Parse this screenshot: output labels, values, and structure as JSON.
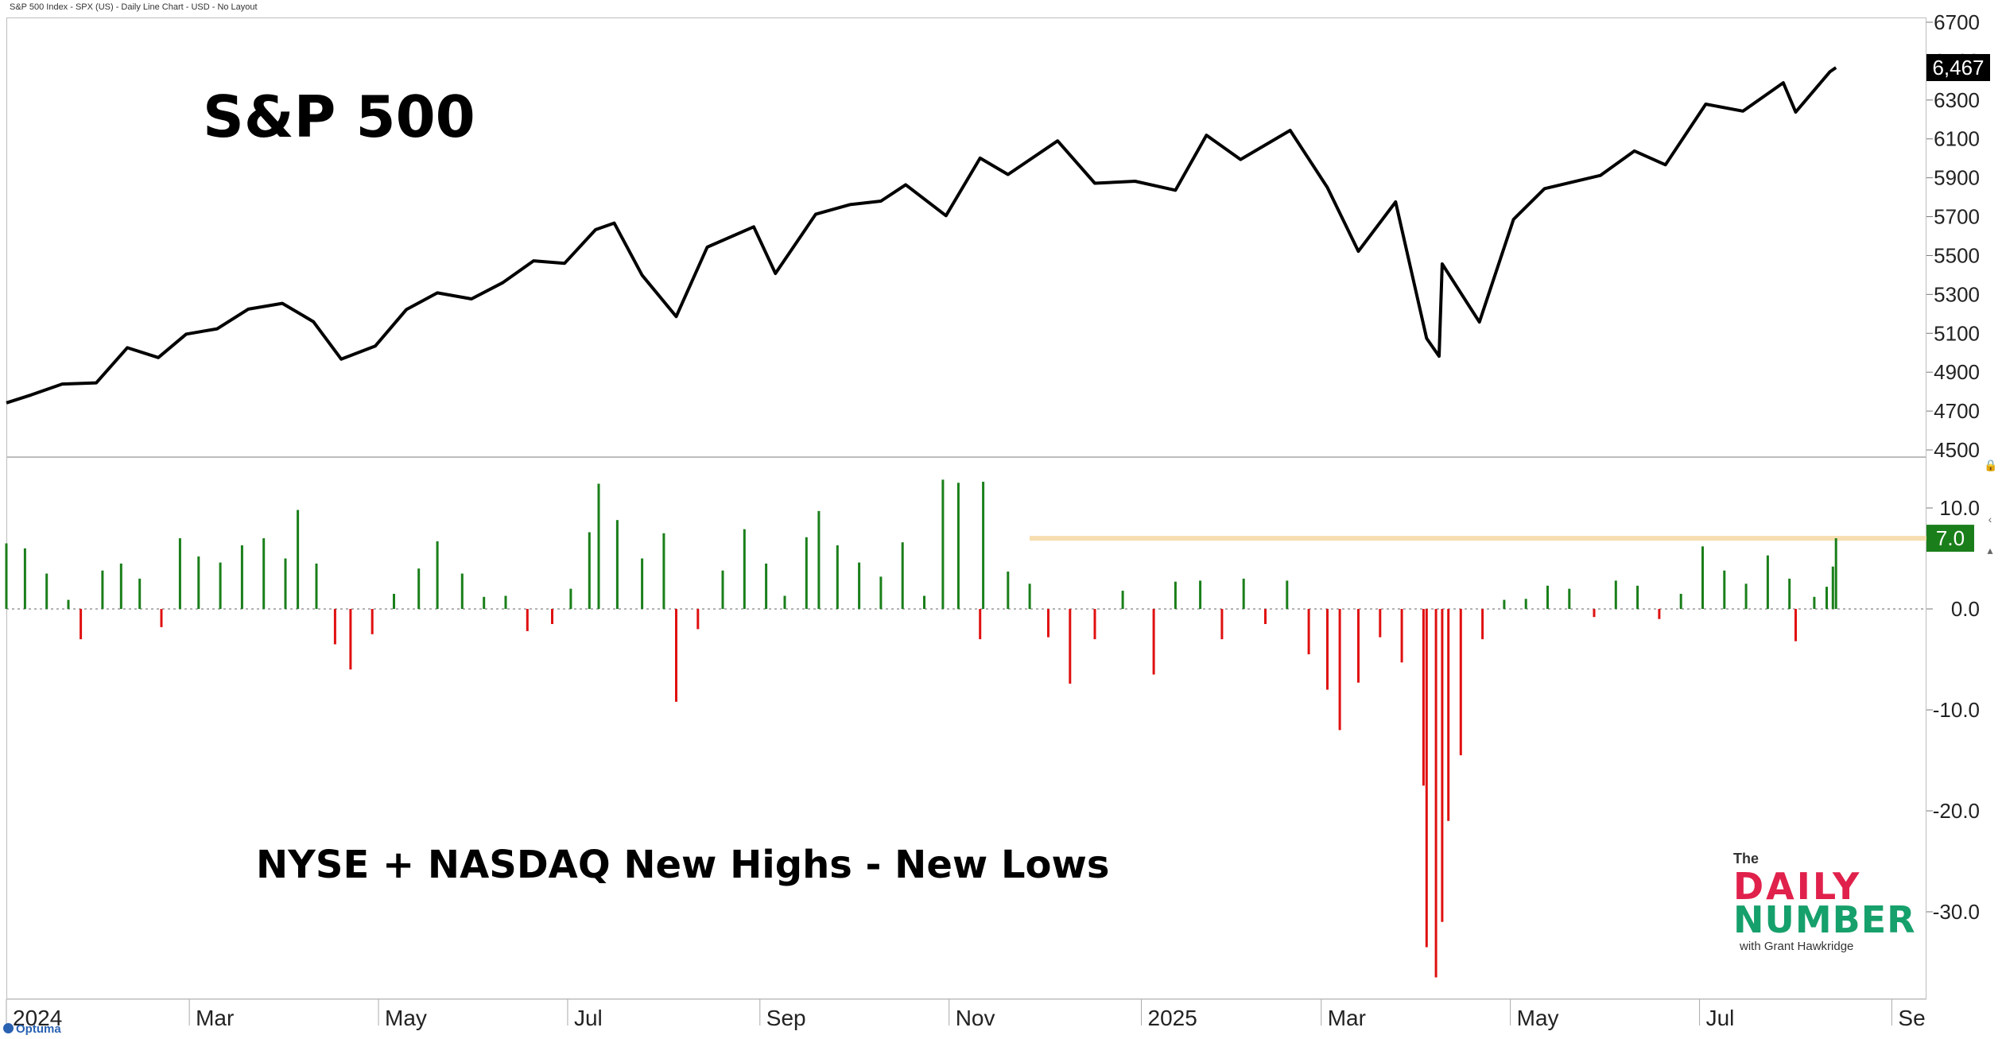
{
  "header": {
    "text": "S&P 500 Index - SPX (US) - Daily Line Chart - USD - No Layout"
  },
  "chart_data": [
    {
      "type": "line",
      "title": "S&P 500",
      "series": [],
      "x_range": [
        "2024-01-02",
        "2025-09-05"
      ],
      "ylim": [
        4500,
        6700
      ],
      "y_ticks": [
        "6700",
        "6500",
        "6300",
        "6100",
        "5900",
        "5700",
        "5500",
        "5300",
        "5100",
        "4900",
        "4700",
        "4500"
      ],
      "last_value": 6467,
      "last_value_label": "6,467",
      "values": [
        {
          "x": "2024-01-02",
          "y": 4742
        },
        {
          "x": "2024-01-10",
          "y": 4783
        },
        {
          "x": "2024-01-20",
          "y": 4839
        },
        {
          "x": "2024-01-31",
          "y": 4845
        },
        {
          "x": "2024-02-10",
          "y": 5026
        },
        {
          "x": "2024-02-20",
          "y": 4975
        },
        {
          "x": "2024-02-29",
          "y": 5096
        },
        {
          "x": "2024-03-10",
          "y": 5123
        },
        {
          "x": "2024-03-20",
          "y": 5224
        },
        {
          "x": "2024-03-31",
          "y": 5254
        },
        {
          "x": "2024-04-10",
          "y": 5160
        },
        {
          "x": "2024-04-19",
          "y": 4967
        },
        {
          "x": "2024-04-30",
          "y": 5035
        },
        {
          "x": "2024-05-10",
          "y": 5222
        },
        {
          "x": "2024-05-20",
          "y": 5308
        },
        {
          "x": "2024-05-31",
          "y": 5277
        },
        {
          "x": "2024-06-10",
          "y": 5360
        },
        {
          "x": "2024-06-20",
          "y": 5473
        },
        {
          "x": "2024-06-30",
          "y": 5460
        },
        {
          "x": "2024-07-10",
          "y": 5633
        },
        {
          "x": "2024-07-16",
          "y": 5667
        },
        {
          "x": "2024-07-25",
          "y": 5399
        },
        {
          "x": "2024-08-05",
          "y": 5186
        },
        {
          "x": "2024-08-15",
          "y": 5543
        },
        {
          "x": "2024-08-30",
          "y": 5648
        },
        {
          "x": "2024-09-06",
          "y": 5408
        },
        {
          "x": "2024-09-19",
          "y": 5713
        },
        {
          "x": "2024-09-30",
          "y": 5762
        },
        {
          "x": "2024-10-10",
          "y": 5780
        },
        {
          "x": "2024-10-18",
          "y": 5864
        },
        {
          "x": "2024-10-31",
          "y": 5705
        },
        {
          "x": "2024-11-11",
          "y": 6001
        },
        {
          "x": "2024-11-20",
          "y": 5917
        },
        {
          "x": "2024-12-06",
          "y": 6090
        },
        {
          "x": "2024-12-18",
          "y": 5872
        },
        {
          "x": "2024-12-31",
          "y": 5882
        },
        {
          "x": "2025-01-13",
          "y": 5836
        },
        {
          "x": "2025-01-23",
          "y": 6119
        },
        {
          "x": "2025-02-03",
          "y": 5994
        },
        {
          "x": "2025-02-19",
          "y": 6144
        },
        {
          "x": "2025-03-03",
          "y": 5850
        },
        {
          "x": "2025-03-13",
          "y": 5522
        },
        {
          "x": "2025-03-25",
          "y": 5776
        },
        {
          "x": "2025-04-04",
          "y": 5074
        },
        {
          "x": "2025-04-08",
          "y": 4982
        },
        {
          "x": "2025-04-09",
          "y": 5457
        },
        {
          "x": "2025-04-21",
          "y": 5158
        },
        {
          "x": "2025-05-02",
          "y": 5686
        },
        {
          "x": "2025-05-12",
          "y": 5844
        },
        {
          "x": "2025-05-30",
          "y": 5912
        },
        {
          "x": "2025-06-10",
          "y": 6038
        },
        {
          "x": "2025-06-20",
          "y": 5967
        },
        {
          "x": "2025-07-03",
          "y": 6279
        },
        {
          "x": "2025-07-15",
          "y": 6243
        },
        {
          "x": "2025-07-28",
          "y": 6389
        },
        {
          "x": "2025-08-01",
          "y": 6238
        },
        {
          "x": "2025-08-12",
          "y": 6445
        },
        {
          "x": "2025-08-14",
          "y": 6467
        }
      ]
    },
    {
      "type": "bar",
      "title": "NYSE + NASDAQ New Highs - New Lows",
      "ylim": [
        -39,
        13
      ],
      "y_ticks": [
        "10.0",
        "0.0",
        "-10.0",
        "-20.0",
        "-30.0"
      ],
      "last_value": 7.0,
      "last_value_label": "7.0",
      "reference_line": 7.0,
      "positive_color": "#1a7f1a",
      "negative_color": "#e01010",
      "reference_color": "#f7deb0",
      "values": [
        {
          "x": "2024-01-02",
          "y": 6.5
        },
        {
          "x": "2024-01-08",
          "y": 6.0
        },
        {
          "x": "2024-01-15",
          "y": 3.5
        },
        {
          "x": "2024-01-22",
          "y": 0.9
        },
        {
          "x": "2024-01-26",
          "y": -3.0
        },
        {
          "x": "2024-02-02",
          "y": 3.8
        },
        {
          "x": "2024-02-08",
          "y": 4.5
        },
        {
          "x": "2024-02-14",
          "y": 3.0
        },
        {
          "x": "2024-02-21",
          "y": -1.8
        },
        {
          "x": "2024-02-27",
          "y": 7.0
        },
        {
          "x": "2024-03-04",
          "y": 5.2
        },
        {
          "x": "2024-03-11",
          "y": 4.6
        },
        {
          "x": "2024-03-18",
          "y": 6.3
        },
        {
          "x": "2024-03-25",
          "y": 7.0
        },
        {
          "x": "2024-04-01",
          "y": 5.0
        },
        {
          "x": "2024-04-05",
          "y": 9.8
        },
        {
          "x": "2024-04-11",
          "y": 4.5
        },
        {
          "x": "2024-04-17",
          "y": -3.5
        },
        {
          "x": "2024-04-22",
          "y": -6.0
        },
        {
          "x": "2024-04-29",
          "y": -2.5
        },
        {
          "x": "2024-05-06",
          "y": 1.5
        },
        {
          "x": "2024-05-14",
          "y": 4.0
        },
        {
          "x": "2024-05-20",
          "y": 6.7
        },
        {
          "x": "2024-05-28",
          "y": 3.5
        },
        {
          "x": "2024-06-04",
          "y": 1.2
        },
        {
          "x": "2024-06-11",
          "y": 1.3
        },
        {
          "x": "2024-06-18",
          "y": -2.2
        },
        {
          "x": "2024-06-26",
          "y": -1.5
        },
        {
          "x": "2024-07-02",
          "y": 2.0
        },
        {
          "x": "2024-07-08",
          "y": 7.6
        },
        {
          "x": "2024-07-11",
          "y": 12.4
        },
        {
          "x": "2024-07-17",
          "y": 8.8
        },
        {
          "x": "2024-07-25",
          "y": 5.0
        },
        {
          "x": "2024-08-01",
          "y": 7.5
        },
        {
          "x": "2024-08-05",
          "y": -9.2
        },
        {
          "x": "2024-08-12",
          "y": -2.0
        },
        {
          "x": "2024-08-20",
          "y": 3.8
        },
        {
          "x": "2024-08-27",
          "y": 7.9
        },
        {
          "x": "2024-09-03",
          "y": 4.5
        },
        {
          "x": "2024-09-09",
          "y": 1.3
        },
        {
          "x": "2024-09-16",
          "y": 7.1
        },
        {
          "x": "2024-09-20",
          "y": 9.7
        },
        {
          "x": "2024-09-26",
          "y": 6.3
        },
        {
          "x": "2024-10-03",
          "y": 4.6
        },
        {
          "x": "2024-10-10",
          "y": 3.2
        },
        {
          "x": "2024-10-17",
          "y": 6.6
        },
        {
          "x": "2024-10-24",
          "y": 1.3
        },
        {
          "x": "2024-10-30",
          "y": 12.8
        },
        {
          "x": "2024-11-04",
          "y": 12.5
        },
        {
          "x": "2024-11-11",
          "y": -3.0
        },
        {
          "x": "2024-11-12",
          "y": 12.6
        },
        {
          "x": "2024-11-20",
          "y": 3.7
        },
        {
          "x": "2024-11-27",
          "y": 2.5
        },
        {
          "x": "2024-12-03",
          "y": -2.8
        },
        {
          "x": "2024-12-10",
          "y": -7.4
        },
        {
          "x": "2024-12-18",
          "y": -3.0
        },
        {
          "x": "2024-12-27",
          "y": 1.8
        },
        {
          "x": "2025-01-06",
          "y": -6.5
        },
        {
          "x": "2025-01-13",
          "y": 2.7
        },
        {
          "x": "2025-01-21",
          "y": 2.8
        },
        {
          "x": "2025-01-28",
          "y": -3.0
        },
        {
          "x": "2025-02-04",
          "y": 3.0
        },
        {
          "x": "2025-02-11",
          "y": -1.5
        },
        {
          "x": "2025-02-18",
          "y": 2.8
        },
        {
          "x": "2025-02-25",
          "y": -4.5
        },
        {
          "x": "2025-03-03",
          "y": -8.0
        },
        {
          "x": "2025-03-07",
          "y": -12.0
        },
        {
          "x": "2025-03-13",
          "y": -7.3
        },
        {
          "x": "2025-03-20",
          "y": -2.8
        },
        {
          "x": "2025-03-27",
          "y": -5.3
        },
        {
          "x": "2025-04-03",
          "y": -17.5
        },
        {
          "x": "2025-04-04",
          "y": -33.5
        },
        {
          "x": "2025-04-07",
          "y": -36.5
        },
        {
          "x": "2025-04-09",
          "y": -31.0
        },
        {
          "x": "2025-04-11",
          "y": -21.0
        },
        {
          "x": "2025-04-15",
          "y": -14.5
        },
        {
          "x": "2025-04-22",
          "y": -3.0
        },
        {
          "x": "2025-04-29",
          "y": 0.9
        },
        {
          "x": "2025-05-06",
          "y": 1.0
        },
        {
          "x": "2025-05-13",
          "y": 2.3
        },
        {
          "x": "2025-05-20",
          "y": 2.0
        },
        {
          "x": "2025-05-28",
          "y": -0.8
        },
        {
          "x": "2025-06-04",
          "y": 2.8
        },
        {
          "x": "2025-06-11",
          "y": 2.3
        },
        {
          "x": "2025-06-18",
          "y": -1.0
        },
        {
          "x": "2025-06-25",
          "y": 1.5
        },
        {
          "x": "2025-07-02",
          "y": 6.2
        },
        {
          "x": "2025-07-09",
          "y": 3.8
        },
        {
          "x": "2025-07-16",
          "y": 2.5
        },
        {
          "x": "2025-07-23",
          "y": 5.3
        },
        {
          "x": "2025-07-30",
          "y": 3.0
        },
        {
          "x": "2025-08-01",
          "y": -3.2
        },
        {
          "x": "2025-08-07",
          "y": 1.2
        },
        {
          "x": "2025-08-11",
          "y": 2.2
        },
        {
          "x": "2025-08-13",
          "y": 4.2
        },
        {
          "x": "2025-08-14",
          "y": 7.0
        }
      ]
    }
  ],
  "x_axis": {
    "labels": [
      {
        "text": "2024",
        "x": "2024-01-02"
      },
      {
        "text": "Mar",
        "x": "2024-03-01"
      },
      {
        "text": "May",
        "x": "2024-05-01"
      },
      {
        "text": "Jul",
        "x": "2024-07-01"
      },
      {
        "text": "Sep",
        "x": "2024-09-01"
      },
      {
        "text": "Nov",
        "x": "2024-11-01"
      },
      {
        "text": "2025",
        "x": "2025-01-02"
      },
      {
        "text": "Mar",
        "x": "2025-03-01"
      },
      {
        "text": "May",
        "x": "2025-05-01"
      },
      {
        "text": "Jul",
        "x": "2025-07-01"
      },
      {
        "text": "Se",
        "x": "2025-09-01"
      }
    ]
  },
  "logo": {
    "the": "The",
    "daily": "DAILY",
    "number": "NUMBER",
    "with": "with Grant Hawkridge"
  },
  "footer": {
    "brand": "Optuma"
  }
}
